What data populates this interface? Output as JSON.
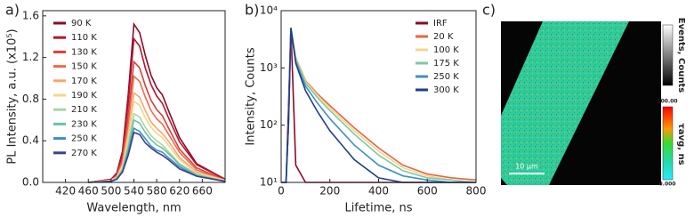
{
  "chart_data": [
    {
      "type": "line",
      "panel_label": "a)",
      "xlabel": "Wavelength, nm",
      "ylabel": "PL Intensity, a.u. (x10⁵)",
      "xlim": [
        380,
        700
      ],
      "xticks": [
        420,
        460,
        500,
        540,
        580,
        620,
        660
      ],
      "ylim": [
        0,
        1.65
      ],
      "yticks": [
        {
          "value": 0,
          "label": "0.0"
        },
        0.4,
        0.8,
        1.2,
        1.6
      ],
      "log_y": false,
      "legend": "upper-left",
      "x": [
        460,
        500,
        510,
        520,
        530,
        540,
        550,
        560,
        570,
        580,
        590,
        600,
        620,
        650,
        700
      ],
      "series": [
        {
          "name": "90 K",
          "color": "#8b0a26",
          "values": [
            0,
            0.03,
            0.09,
            0.3,
            0.84,
            1.52,
            1.44,
            1.22,
            1.03,
            0.91,
            0.84,
            0.7,
            0.43,
            0.18,
            0.03
          ]
        },
        {
          "name": "110 K",
          "color": "#b3172e",
          "values": [
            0,
            0.03,
            0.08,
            0.28,
            0.76,
            1.38,
            1.31,
            1.1,
            0.94,
            0.83,
            0.76,
            0.63,
            0.39,
            0.17,
            0.03
          ]
        },
        {
          "name": "130 K",
          "color": "#d73f3b",
          "values": [
            0,
            0.02,
            0.07,
            0.23,
            0.64,
            1.16,
            1.1,
            0.93,
            0.79,
            0.7,
            0.64,
            0.53,
            0.32,
            0.14,
            0.02
          ]
        },
        {
          "name": "150 K",
          "color": "#ef6a4a",
          "values": [
            0,
            0.02,
            0.06,
            0.2,
            0.56,
            1.02,
            0.97,
            0.82,
            0.69,
            0.61,
            0.56,
            0.47,
            0.29,
            0.12,
            0.02
          ]
        },
        {
          "name": "170 K",
          "color": "#f9a66a",
          "values": [
            0,
            0.02,
            0.05,
            0.17,
            0.47,
            0.86,
            0.82,
            0.69,
            0.58,
            0.52,
            0.47,
            0.4,
            0.24,
            0.1,
            0.02
          ]
        },
        {
          "name": "190 K",
          "color": "#f4d58c",
          "values": [
            0,
            0.02,
            0.05,
            0.16,
            0.43,
            0.78,
            0.74,
            0.62,
            0.53,
            0.47,
            0.43,
            0.36,
            0.22,
            0.09,
            0.02
          ]
        },
        {
          "name": "210 K",
          "color": "#a7d7a4",
          "values": [
            0,
            0.01,
            0.04,
            0.13,
            0.36,
            0.66,
            0.63,
            0.53,
            0.45,
            0.4,
            0.36,
            0.3,
            0.18,
            0.08,
            0.01
          ]
        },
        {
          "name": "230 K",
          "color": "#6cc0a5",
          "values": [
            0,
            0.01,
            0.04,
            0.12,
            0.33,
            0.6,
            0.57,
            0.48,
            0.41,
            0.36,
            0.33,
            0.28,
            0.17,
            0.07,
            0.01
          ]
        },
        {
          "name": "250 K",
          "color": "#3f8fc1",
          "values": [
            0,
            0.01,
            0.03,
            0.1,
            0.29,
            0.52,
            0.49,
            0.42,
            0.35,
            0.31,
            0.29,
            0.24,
            0.15,
            0.06,
            0.01
          ]
        },
        {
          "name": "270 K",
          "color": "#3b3f8f",
          "values": [
            0,
            0.01,
            0.03,
            0.1,
            0.26,
            0.48,
            0.46,
            0.38,
            0.33,
            0.29,
            0.26,
            0.22,
            0.13,
            0.06,
            0.01
          ]
        }
      ]
    },
    {
      "type": "line",
      "panel_label": "b)",
      "xlabel": "Lifetime, ns",
      "ylabel": "Intensity, Counts",
      "xlim": [
        0,
        800
      ],
      "xticks": [
        0,
        200,
        400,
        600,
        800
      ],
      "ylim": [
        10,
        10000
      ],
      "yticks": [
        {
          "value": 10,
          "label": "10¹"
        },
        {
          "value": 100,
          "label": "10²"
        },
        {
          "value": 1000,
          "label": "10³"
        },
        {
          "value": 10000,
          "label": "10⁴"
        }
      ],
      "log_y": true,
      "legend": "upper-right",
      "x": [
        0,
        20,
        30,
        40,
        60,
        100,
        150,
        200,
        300,
        400,
        500,
        600,
        700,
        800
      ],
      "series": [
        {
          "name": "IRF",
          "color": "#8b0a26",
          "values": [
            10,
            10,
            200,
            5000,
            20,
            10,
            10,
            10,
            10,
            10,
            10,
            10,
            10,
            10
          ]
        },
        {
          "name": "20 K",
          "color": "#e8643f",
          "values": [
            10,
            10,
            100,
            5000,
            1500,
            600,
            350,
            220,
            90,
            40,
            20,
            14,
            12,
            11
          ]
        },
        {
          "name": "100 K",
          "color": "#f4d58c",
          "values": [
            10,
            10,
            100,
            5000,
            1450,
            580,
            330,
            200,
            80,
            35,
            18,
            13,
            11,
            10
          ]
        },
        {
          "name": "175 K",
          "color": "#7fc9a5",
          "values": [
            10,
            10,
            100,
            5000,
            1400,
            540,
            300,
            180,
            70,
            30,
            16,
            12,
            11,
            10
          ]
        },
        {
          "name": "250 K",
          "color": "#3f8fc1",
          "values": [
            10,
            10,
            100,
            5000,
            1300,
            480,
            240,
            130,
            45,
            20,
            13,
            11,
            10,
            10
          ]
        },
        {
          "name": "300 K",
          "color": "#1d3f8a",
          "values": [
            10,
            10,
            100,
            5000,
            1200,
            400,
            170,
            80,
            25,
            12,
            10,
            10,
            10,
            10
          ]
        }
      ]
    },
    {
      "type": "image",
      "panel_label": "c)",
      "scale_bar": "10 µm",
      "counts_label": "Events, Counts",
      "lifetime_label": "τavg, ns",
      "lifetime_colorbar_labels": [
        "100.00",
        "0.000"
      ]
    }
  ]
}
